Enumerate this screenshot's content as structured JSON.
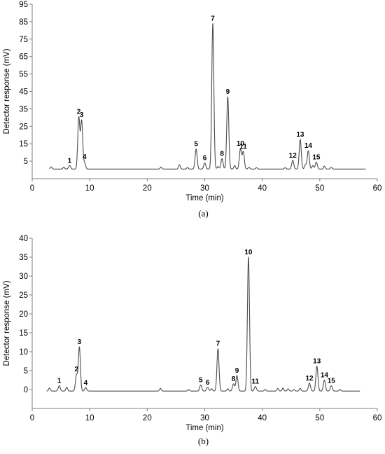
{
  "chart_data": [
    {
      "type": "line",
      "panel_label": "(a)",
      "xlabel": "Time (min)",
      "ylabel": "Detector response (mV)",
      "xlim": [
        0,
        60
      ],
      "ylim": [
        -5,
        95
      ],
      "xticks": [
        0,
        10,
        20,
        30,
        40,
        50,
        60
      ],
      "yticks": [
        5,
        15,
        25,
        35,
        45,
        55,
        65,
        75,
        85,
        95
      ],
      "x_tick_labels": [
        "0",
        "10",
        "20",
        "30",
        "40",
        "50",
        "60"
      ],
      "y_tick_labels": [
        "5",
        "15",
        "25",
        "35",
        "45",
        "55",
        "65",
        "75",
        "85",
        "95"
      ],
      "grid": false,
      "line_color": "#4d4d4d",
      "baseline": 0.5,
      "trace_range": [
        3.0,
        58.0
      ],
      "peaks": [
        {
          "label": "1",
          "x": 6.5,
          "y": 2.5
        },
        {
          "label": "2",
          "x": 8.1,
          "y": 30.0
        },
        {
          "label": "3",
          "x": 8.6,
          "y": 28.0
        },
        {
          "label": "4",
          "x": 9.1,
          "y": 4.0
        },
        {
          "label": "5",
          "x": 28.5,
          "y": 12.0
        },
        {
          "label": "6",
          "x": 30.0,
          "y": 4.0
        },
        {
          "label": "7",
          "x": 31.4,
          "y": 84.0
        },
        {
          "label": "8",
          "x": 33.0,
          "y": 6.5
        },
        {
          "label": "9",
          "x": 34.0,
          "y": 42.0
        },
        {
          "label": "10",
          "x": 36.2,
          "y": 12.0
        },
        {
          "label": "11",
          "x": 36.7,
          "y": 10.5
        },
        {
          "label": "12",
          "x": 45.3,
          "y": 5.5
        },
        {
          "label": "13",
          "x": 46.6,
          "y": 17.5
        },
        {
          "label": "14",
          "x": 48.0,
          "y": 11.0
        },
        {
          "label": "15",
          "x": 49.4,
          "y": 4.5
        }
      ],
      "minor_peaks": [
        {
          "x": 3.3,
          "y": 1.8
        },
        {
          "x": 5.5,
          "y": 1.6
        },
        {
          "x": 22.4,
          "y": 1.6
        },
        {
          "x": 25.6,
          "y": 3.0
        },
        {
          "x": 27.0,
          "y": 1.4
        },
        {
          "x": 32.3,
          "y": 2.0
        },
        {
          "x": 35.2,
          "y": 2.5
        },
        {
          "x": 37.7,
          "y": 1.5
        },
        {
          "x": 39.0,
          "y": 1.3
        },
        {
          "x": 44.0,
          "y": 1.3
        },
        {
          "x": 47.5,
          "y": 3.0
        },
        {
          "x": 48.8,
          "y": 2.5
        },
        {
          "x": 50.8,
          "y": 2.2
        },
        {
          "x": 52.0,
          "y": 1.5
        }
      ]
    },
    {
      "type": "line",
      "panel_label": "(b)",
      "xlabel": "Time (min)",
      "ylabel": "Detector response (mV)",
      "xlim": [
        0,
        60
      ],
      "ylim": [
        -5,
        40
      ],
      "xticks": [
        0,
        10,
        20,
        30,
        40,
        50,
        60
      ],
      "yticks": [
        0,
        5,
        10,
        15,
        20,
        25,
        30,
        35,
        40
      ],
      "x_tick_labels": [
        "0",
        "10",
        "20",
        "30",
        "40",
        "50",
        "60"
      ],
      "y_tick_labels": [
        "0",
        "5",
        "10",
        "15",
        "20",
        "25",
        "30",
        "35",
        "40"
      ],
      "grid": false,
      "line_color": "#4d4d4d",
      "baseline": -0.4,
      "trace_range": [
        2.5,
        57.0
      ],
      "peaks": [
        {
          "label": "1",
          "x": 4.7,
          "y": 1.0
        },
        {
          "label": "2",
          "x": 7.7,
          "y": 3.8
        },
        {
          "label": "3",
          "x": 8.2,
          "y": 11.2
        },
        {
          "label": "4",
          "x": 9.3,
          "y": 0.5
        },
        {
          "label": "5",
          "x": 29.3,
          "y": 1.2
        },
        {
          "label": "6",
          "x": 30.5,
          "y": 0.6
        },
        {
          "label": "7",
          "x": 32.3,
          "y": 10.8
        },
        {
          "label": "8",
          "x": 35.0,
          "y": 1.5
        },
        {
          "label": "9",
          "x": 35.6,
          "y": 3.7
        },
        {
          "label": "10",
          "x": 37.6,
          "y": 35.0
        },
        {
          "label": "11",
          "x": 38.8,
          "y": 0.8
        },
        {
          "label": "12",
          "x": 48.2,
          "y": 1.7
        },
        {
          "label": "13",
          "x": 49.5,
          "y": 6.2
        },
        {
          "label": "14",
          "x": 50.8,
          "y": 2.5
        },
        {
          "label": "15",
          "x": 52.0,
          "y": 1.0
        }
      ],
      "minor_peaks": [
        {
          "x": 3.0,
          "y": 0.4
        },
        {
          "x": 6.0,
          "y": 0.6
        },
        {
          "x": 22.3,
          "y": 0.3
        },
        {
          "x": 27.2,
          "y": 0.0
        },
        {
          "x": 31.2,
          "y": 0.2
        },
        {
          "x": 34.0,
          "y": 0.2
        },
        {
          "x": 40.5,
          "y": 0.0
        },
        {
          "x": 42.7,
          "y": 0.3
        },
        {
          "x": 43.6,
          "y": 0.4
        },
        {
          "x": 44.5,
          "y": 0.2
        },
        {
          "x": 45.5,
          "y": 0.0
        },
        {
          "x": 46.6,
          "y": 0.3
        },
        {
          "x": 53.5,
          "y": 0.0
        }
      ]
    }
  ]
}
